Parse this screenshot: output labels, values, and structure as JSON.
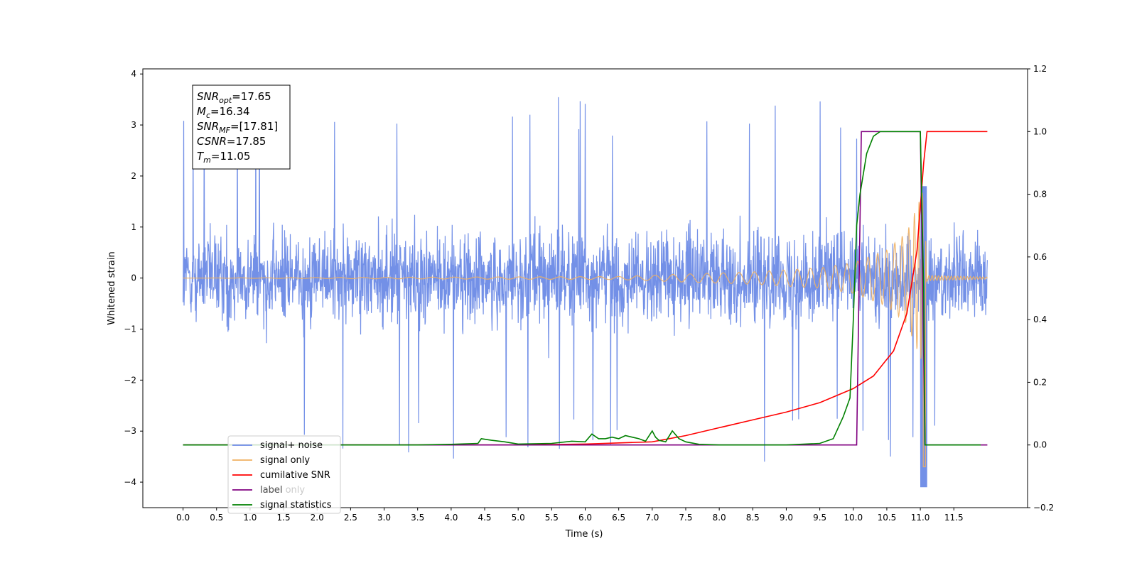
{
  "chart_data": {
    "type": "line",
    "xlabel": "Time (s)",
    "ylabel_left": "Whitened strain",
    "ylabel_right": "",
    "xlim": [
      -0.6,
      12.6
    ],
    "ylim_left": [
      -4.5,
      4.1
    ],
    "ylim_right": [
      -0.2,
      1.2
    ],
    "x_ticks": [
      0.0,
      0.5,
      1.0,
      1.5,
      2.0,
      2.5,
      3.0,
      3.5,
      4.0,
      4.5,
      5.0,
      5.5,
      6.0,
      6.5,
      7.0,
      7.5,
      8.0,
      8.5,
      9.0,
      9.5,
      10.0,
      10.5,
      11.0,
      11.5
    ],
    "x_tick_labels": [
      "0.0",
      "0.5",
      "1.0",
      "1.5",
      "2.0",
      "2.5",
      "3.0",
      "3.5",
      "4.0",
      "4.5",
      "5.0",
      "5.5",
      "6.0",
      "6.5",
      "7.0",
      "7.5",
      "8.0",
      "8.5",
      "9.0",
      "9.5",
      "10.0",
      "10.5",
      "11.0",
      "11.5"
    ],
    "y_left_ticks": [
      4,
      3,
      2,
      1,
      0,
      -1,
      -2,
      -3,
      -4
    ],
    "y_left_tick_labels": [
      "4",
      "3",
      "2",
      "1",
      "0",
      "−1",
      "−2",
      "−3",
      "−4"
    ],
    "y_right_ticks": [
      1.2,
      1.0,
      0.8,
      0.6,
      0.4,
      0.2,
      0.0,
      -0.2
    ],
    "y_right_tick_labels": [
      "1.2",
      "1.0",
      "0.8",
      "0.6",
      "0.4",
      "0.2",
      "0.0",
      "−0.2"
    ],
    "grid": false,
    "legend_position": "lower-left",
    "series": [
      {
        "name": "signal+ noise",
        "axis": "left",
        "color": "#6b8ae6",
        "style": "noise band, roughly ±2 typical amplitude with spikes up to ±3.6, t = 0 to 12",
        "x_range": [
          0,
          12
        ],
        "typical_amplitude": 2.0,
        "peak_amplitude": 3.6,
        "min_dip": -4.1
      },
      {
        "name": "signal only",
        "axis": "left",
        "color": "#f0b060",
        "style": "chirp oscillation growing in amplitude, merger at about 11.05 s",
        "x_range": [
          0,
          12
        ],
        "envelope": {
          "x": [
            0,
            6.5,
            7.5,
            8.5,
            9.5,
            10.0,
            10.5,
            10.8,
            10.95,
            11.05,
            11.1,
            12.0
          ],
          "amplitude": [
            0.0,
            0.03,
            0.08,
            0.12,
            0.2,
            0.3,
            0.55,
            0.9,
            1.4,
            1.75,
            0.05,
            0.02
          ]
        }
      },
      {
        "name": "cumilative SNR",
        "axis": "right",
        "color": "#ff0000",
        "x": [
          0,
          5,
          6,
          7,
          7.5,
          8,
          8.5,
          9,
          9.5,
          10,
          10.3,
          10.6,
          10.8,
          10.95,
          11.05,
          11.1,
          12.0
        ],
        "y": [
          0.0,
          0.0,
          0.003,
          0.01,
          0.03,
          0.055,
          0.08,
          0.105,
          0.135,
          0.18,
          0.22,
          0.3,
          0.42,
          0.62,
          0.9,
          1.0,
          1.0
        ]
      },
      {
        "name": "label",
        "axis": "right",
        "color": "#800080",
        "x": [
          0,
          10.05,
          10.12,
          11.0,
          11.07,
          12.0
        ],
        "y": [
          0.0,
          0.0,
          1.0,
          1.0,
          0.0,
          0.0
        ]
      },
      {
        "name": "signal statistics",
        "axis": "right",
        "color": "#008000",
        "x": [
          0,
          3.5,
          4.0,
          4.4,
          4.45,
          4.6,
          4.8,
          5.0,
          5.5,
          5.8,
          6.0,
          6.1,
          6.2,
          6.3,
          6.4,
          6.5,
          6.6,
          6.7,
          6.8,
          6.9,
          7.0,
          7.05,
          7.1,
          7.2,
          7.3,
          7.4,
          7.5,
          7.7,
          8.0,
          9.0,
          9.5,
          9.7,
          9.85,
          9.95,
          10.0,
          10.05,
          10.1,
          10.2,
          10.3,
          10.4,
          11.0,
          11.05,
          11.07,
          11.9
        ],
        "y": [
          0.0,
          0.0,
          0.002,
          0.005,
          0.02,
          0.015,
          0.01,
          0.003,
          0.005,
          0.012,
          0.01,
          0.035,
          0.02,
          0.02,
          0.025,
          0.02,
          0.03,
          0.025,
          0.02,
          0.012,
          0.045,
          0.025,
          0.015,
          0.01,
          0.045,
          0.02,
          0.01,
          0.002,
          0.0,
          0.0,
          0.005,
          0.02,
          0.09,
          0.15,
          0.4,
          0.7,
          0.8,
          0.93,
          0.985,
          1.0,
          1.0,
          0.5,
          0.0,
          0.0
        ]
      },
      {
        "name": "label only",
        "axis": "right",
        "color": "#800080",
        "hidden": true
      }
    ],
    "legend": [
      {
        "label": "signal+ noise",
        "color": "#6b8ae6"
      },
      {
        "label": "signal only",
        "color": "#f0b060"
      },
      {
        "label": "cumilative SNR",
        "color": "#ff0000"
      },
      {
        "label": "label",
        "color": "#800080"
      },
      {
        "label": "label only",
        "color": "#9e9e9e",
        "faded": true
      },
      {
        "label": "signal statistics",
        "color": "#008000"
      }
    ],
    "annotation": {
      "lines": [
        {
          "main": "SNR",
          "sub": "opt",
          "rest": "=17.65"
        },
        {
          "main": "M",
          "sub": "c",
          "rest": "=16.34"
        },
        {
          "main": "SNR",
          "sub": "MF",
          "rest": "=[17.81]"
        },
        {
          "main": "CSNR",
          "sub": "",
          "rest": "=17.85"
        },
        {
          "main": "T",
          "sub": "m",
          "rest": "=11.05"
        }
      ]
    }
  }
}
